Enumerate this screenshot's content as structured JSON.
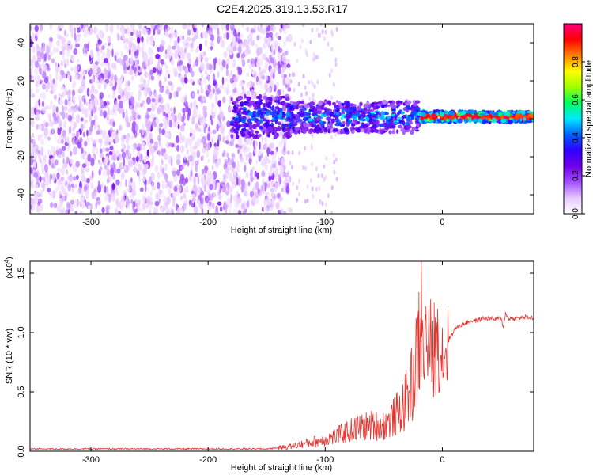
{
  "figure": {
    "title": "C2E4.2025.319.13.53.R17"
  },
  "chart_data": [
    {
      "type": "heatmap",
      "title": "C2E4.2025.319.13.53.R17",
      "xlabel": "Height of straight line (km)",
      "ylabel": "Frequency (Hz)",
      "xlim": [
        -352,
        78
      ],
      "ylim": [
        -50,
        50
      ],
      "xticks": [
        "-300",
        "-200",
        "-100",
        "0"
      ],
      "xtick_values": [
        -300,
        -200,
        -100,
        0
      ],
      "yticks": [
        "-40",
        "-20",
        "0",
        "20",
        "40"
      ],
      "ytick_values": [
        -40,
        -20,
        0,
        20,
        40
      ],
      "colorbar": {
        "label": "Normalized spectral amplitude",
        "range": [
          0,
          1
        ],
        "ticks": [
          "0.0",
          "0.2",
          "0.4",
          "0.6",
          "0.8"
        ],
        "tick_values": [
          0.0,
          0.2,
          0.4,
          0.6,
          0.8
        ],
        "colors": [
          "#ffffff",
          "#e8c8ff",
          "#a050ff",
          "#7000e8",
          "#3000ff",
          "#0060ff",
          "#00e8ff",
          "#00ff60",
          "#a0ff00",
          "#ffff00",
          "#ff8000",
          "#ff0000",
          "#ff0080"
        ]
      },
      "description_regions": {
        "broadband_noise_x": [
          -352,
          -130
        ],
        "narrowband_signal_x": [
          -130,
          78
        ],
        "signal_center_freq": 1
      }
    },
    {
      "type": "line",
      "xlabel": "Height of straight line (km)",
      "ylabel": "SNR (10 * v/v)",
      "yscale_label": "(x10",
      "yscale_exp": "4",
      "xlim": [
        -352,
        78
      ],
      "ylim": [
        0,
        1.6
      ],
      "xticks": [
        "-300",
        "-200",
        "-100",
        "0"
      ],
      "xtick_values": [
        -300,
        -200,
        -100,
        0
      ],
      "yticks": [
        "0.0",
        "0.5",
        "1.0",
        "1.5"
      ],
      "ytick_values": [
        0.0,
        0.5,
        1.0,
        1.5
      ],
      "series": [
        {
          "color": "#e8302a",
          "x": [
            -352,
            -300,
            -250,
            -200,
            -150,
            -130,
            -120,
            -110,
            -100,
            -90,
            -80,
            -70,
            -60,
            -50,
            -45,
            -40,
            -35,
            -30,
            -25,
            -22,
            -20,
            -18,
            -16,
            -14,
            -12,
            -10,
            -8,
            -6,
            -4,
            -2,
            0,
            3,
            6,
            10,
            15,
            20,
            25,
            30,
            35,
            40,
            45,
            50,
            52,
            54,
            56,
            60,
            65,
            70,
            78
          ],
          "values": [
            0.02,
            0.02,
            0.02,
            0.02,
            0.02,
            0.04,
            0.06,
            0.08,
            0.1,
            0.13,
            0.17,
            0.2,
            0.22,
            0.22,
            0.25,
            0.3,
            0.35,
            0.45,
            0.6,
            0.75,
            0.8,
            0.85,
            0.9,
            0.88,
            0.92,
            0.8,
            0.78,
            0.82,
            0.88,
            0.9,
            0.82,
            0.86,
            0.95,
            1.02,
            1.06,
            1.08,
            1.1,
            1.1,
            1.12,
            1.12,
            1.11,
            1.12,
            1.05,
            1.16,
            1.12,
            1.12,
            1.12,
            1.13,
            1.12
          ],
          "spikes": [
            [
              -20,
              1.34
            ],
            [
              -18,
              1.63
            ],
            [
              -14,
              1.22
            ],
            [
              -10,
              1.28
            ],
            [
              -7,
              1.25
            ],
            [
              -4,
              1.2
            ]
          ]
        }
      ]
    }
  ]
}
